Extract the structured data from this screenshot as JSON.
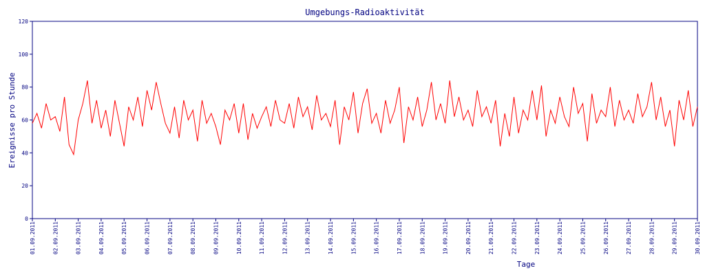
{
  "chart_data": {
    "type": "line",
    "title": "Umgebungs-Radioaktivität",
    "x_label": "Tage",
    "y_label": "Ereignisse pro Stunde",
    "x": [
      0,
      0.2,
      0.4,
      0.6,
      0.8,
      1,
      1.2,
      1.4,
      1.6,
      1.8,
      2,
      2.2,
      2.4,
      2.6,
      2.8,
      3,
      3.2,
      3.4,
      3.6,
      3.8,
      4,
      4.2,
      4.4,
      4.6,
      4.8,
      5,
      5.2,
      5.4,
      5.6,
      5.8,
      6,
      6.2,
      6.4,
      6.6,
      6.8,
      7,
      7.2,
      7.4,
      7.6,
      7.8,
      8,
      8.2,
      8.4,
      8.6,
      8.8,
      9,
      9.2,
      9.4,
      9.6,
      9.8,
      10,
      10.2,
      10.4,
      10.6,
      10.8,
      11,
      11.2,
      11.4,
      11.6,
      11.8,
      12,
      12.2,
      12.4,
      12.6,
      12.8,
      13,
      13.2,
      13.4,
      13.6,
      13.8,
      14,
      14.2,
      14.4,
      14.6,
      14.8,
      15,
      15.2,
      15.4,
      15.6,
      15.8,
      16,
      16.2,
      16.4,
      16.6,
      16.8,
      17,
      17.2,
      17.4,
      17.6,
      17.8,
      18,
      18.2,
      18.4,
      18.6,
      18.8,
      19,
      19.2,
      19.4,
      19.6,
      19.8,
      20,
      20.2,
      20.4,
      20.6,
      20.8,
      21,
      21.2,
      21.4,
      21.6,
      21.8,
      22,
      22.2,
      22.4,
      22.6,
      22.8,
      23,
      23.2,
      23.4,
      23.6,
      23.8,
      24,
      24.2,
      24.4,
      24.6,
      24.8,
      25,
      25.2,
      25.4,
      25.6,
      25.8,
      26,
      26.2,
      26.4,
      26.6,
      26.8,
      27,
      27.2,
      27.4,
      27.6,
      27.8,
      28,
      28.2,
      28.4,
      28.6,
      28.8,
      29
    ],
    "series": [
      {
        "name": "Ereignisse",
        "color": "#ff0000",
        "values": [
          58,
          64,
          55,
          70,
          60,
          62,
          53,
          74,
          45,
          39,
          60,
          70,
          84,
          58,
          72,
          55,
          66,
          50,
          72,
          58,
          44,
          68,
          60,
          74,
          56,
          78,
          66,
          83,
          70,
          58,
          52,
          68,
          49,
          72,
          60,
          66,
          47,
          72,
          58,
          64,
          56,
          45,
          66,
          60,
          70,
          52,
          70,
          48,
          64,
          55,
          62,
          68,
          56,
          72,
          60,
          58,
          70,
          55,
          74,
          62,
          68,
          54,
          75,
          60,
          64,
          56,
          72,
          45,
          68,
          60,
          77,
          52,
          70,
          79,
          58,
          64,
          52,
          72,
          58,
          66,
          80,
          46,
          68,
          60,
          74,
          56,
          66,
          83,
          60,
          70,
          58,
          84,
          62,
          74,
          60,
          66,
          56,
          78,
          62,
          68,
          58,
          72,
          44,
          64,
          50,
          74,
          52,
          66,
          60,
          78,
          60,
          81,
          50,
          66,
          58,
          74,
          62,
          56,
          80,
          64,
          70,
          47,
          76,
          58,
          66,
          62,
          80,
          56,
          72,
          60,
          66,
          58,
          76,
          62,
          68,
          83,
          60,
          74,
          56,
          66,
          44,
          72,
          60,
          78,
          56,
          68
        ]
      }
    ],
    "xlim": [
      0,
      29
    ],
    "ylim": [
      0,
      120
    ],
    "yticks": [
      0,
      20,
      40,
      60,
      80,
      100,
      120
    ],
    "xticks": [
      {
        "value": 0,
        "label": "01.09.2011"
      },
      {
        "value": 1,
        "label": "02.09.2011"
      },
      {
        "value": 2,
        "label": "03.09.2011"
      },
      {
        "value": 3,
        "label": "04.09.2011"
      },
      {
        "value": 4,
        "label": "05.09.2011"
      },
      {
        "value": 5,
        "label": "06.09.2011"
      },
      {
        "value": 6,
        "label": "07.09.2011"
      },
      {
        "value": 7,
        "label": "08.09.2011"
      },
      {
        "value": 8,
        "label": "09.09.2011"
      },
      {
        "value": 9,
        "label": "10.09.2011"
      },
      {
        "value": 10,
        "label": "11.09.2011"
      },
      {
        "value": 11,
        "label": "12.09.2011"
      },
      {
        "value": 12,
        "label": "13.09.2011"
      },
      {
        "value": 13,
        "label": "14.09.2011"
      },
      {
        "value": 14,
        "label": "15.09.2011"
      },
      {
        "value": 15,
        "label": "16.09.2011"
      },
      {
        "value": 16,
        "label": "17.09.2011"
      },
      {
        "value": 17,
        "label": "18.09.2011"
      },
      {
        "value": 18,
        "label": "19.09.2011"
      },
      {
        "value": 19,
        "label": "20.09.2011"
      },
      {
        "value": 20,
        "label": "21.09.2011"
      },
      {
        "value": 21,
        "label": "22.09.2011"
      },
      {
        "value": 22,
        "label": "23.09.2011"
      },
      {
        "value": 23,
        "label": "24.09.2011"
      },
      {
        "value": 24,
        "label": "25.09.2011"
      },
      {
        "value": 25,
        "label": "26.09.2011"
      },
      {
        "value": 26,
        "label": "27.09.2011"
      },
      {
        "value": 27,
        "label": "28.09.2011"
      },
      {
        "value": 28,
        "label": "29.09.2011"
      },
      {
        "value": 29,
        "label": "30.09.2011"
      }
    ],
    "axis_color": "#000080"
  }
}
